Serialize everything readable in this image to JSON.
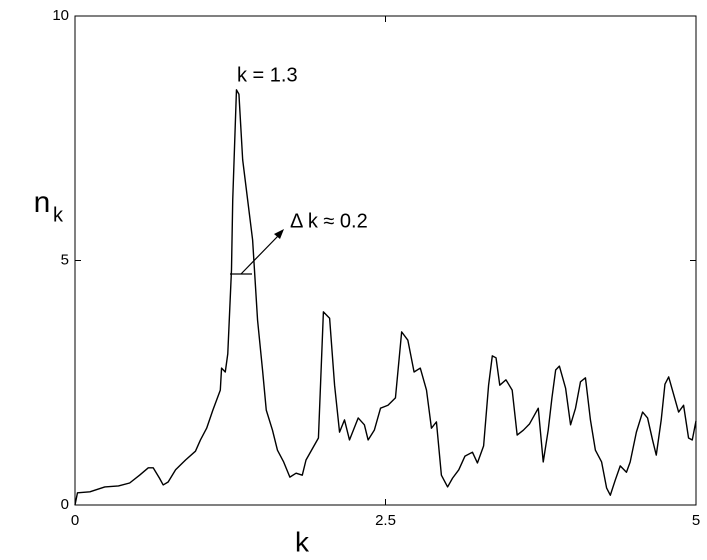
{
  "chart_data": {
    "type": "line",
    "xlabel": "k",
    "ylabel": "n",
    "ylabel_sub": "k",
    "annotations": [
      "k = 1.3",
      "Δ k ≈ 0.2"
    ],
    "xlim": [
      0,
      5
    ],
    "xticks": [
      0,
      2.5,
      5
    ],
    "ylim": [
      0,
      10
    ],
    "yticks": [
      0,
      5,
      10
    ],
    "grid": false,
    "series": [
      {
        "color": "#000000",
        "x": [
          0,
          0.02,
          0.12,
          0.24,
          0.35,
          0.44,
          0.52,
          0.59,
          0.63,
          0.68,
          0.71,
          0.75,
          0.81,
          0.89,
          0.97,
          1.01,
          1.06,
          1.11,
          1.17,
          1.18,
          1.21,
          1.23,
          1.26,
          1.27,
          1.3,
          1.32,
          1.35,
          1.39,
          1.43,
          1.45,
          1.47,
          1.51,
          1.54,
          1.59,
          1.63,
          1.68,
          1.73,
          1.78,
          1.83,
          1.86,
          1.96,
          2.0,
          2.05,
          2.09,
          2.13,
          2.17,
          2.21,
          2.28,
          2.33,
          2.36,
          2.41,
          2.46,
          2.52,
          2.58,
          2.63,
          2.68,
          2.73,
          2.78,
          2.83,
          2.87,
          2.91,
          2.95,
          3.0,
          3.04,
          3.09,
          3.14,
          3.2,
          3.24,
          3.29,
          3.33,
          3.36,
          3.39,
          3.42,
          3.47,
          3.52,
          3.56,
          3.61,
          3.66,
          3.73,
          3.77,
          3.81,
          3.84,
          3.87,
          3.9,
          3.95,
          3.99,
          4.03,
          4.07,
          4.11,
          4.15,
          4.19,
          4.24,
          4.28,
          4.31,
          4.35,
          4.39,
          4.44,
          4.47,
          4.52,
          4.57,
          4.61,
          4.65,
          4.68,
          4.72,
          4.75,
          4.78,
          4.81,
          4.86,
          4.9,
          4.94,
          4.97,
          5.0
        ],
        "values": [
          0,
          0.25,
          0.27,
          0.37,
          0.39,
          0.45,
          0.61,
          0.76,
          0.76,
          0.55,
          0.41,
          0.47,
          0.72,
          0.92,
          1.1,
          1.33,
          1.57,
          1.94,
          2.35,
          2.8,
          2.72,
          3.09,
          4.81,
          6.24,
          8.49,
          8.4,
          7.06,
          6.24,
          5.42,
          4.6,
          3.78,
          2.76,
          1.94,
          1.53,
          1.12,
          0.88,
          0.57,
          0.65,
          0.61,
          0.92,
          1.37,
          3.95,
          3.82,
          2.45,
          1.49,
          1.74,
          1.33,
          1.78,
          1.64,
          1.33,
          1.53,
          1.98,
          2.04,
          2.19,
          3.54,
          3.37,
          2.72,
          2.8,
          2.35,
          1.57,
          1.7,
          0.61,
          0.37,
          0.55,
          0.72,
          1.0,
          1.08,
          0.86,
          1.21,
          2.45,
          3.05,
          3.01,
          2.45,
          2.56,
          2.35,
          1.43,
          1.53,
          1.66,
          1.98,
          0.88,
          1.53,
          2.19,
          2.76,
          2.84,
          2.39,
          1.64,
          1.98,
          2.52,
          2.6,
          1.74,
          1.12,
          0.88,
          0.35,
          0.2,
          0.51,
          0.8,
          0.67,
          0.88,
          1.49,
          1.9,
          1.78,
          1.33,
          1.02,
          1.74,
          2.47,
          2.62,
          2.35,
          1.9,
          2.04,
          1.37,
          1.33,
          1.72
        ]
      }
    ]
  }
}
